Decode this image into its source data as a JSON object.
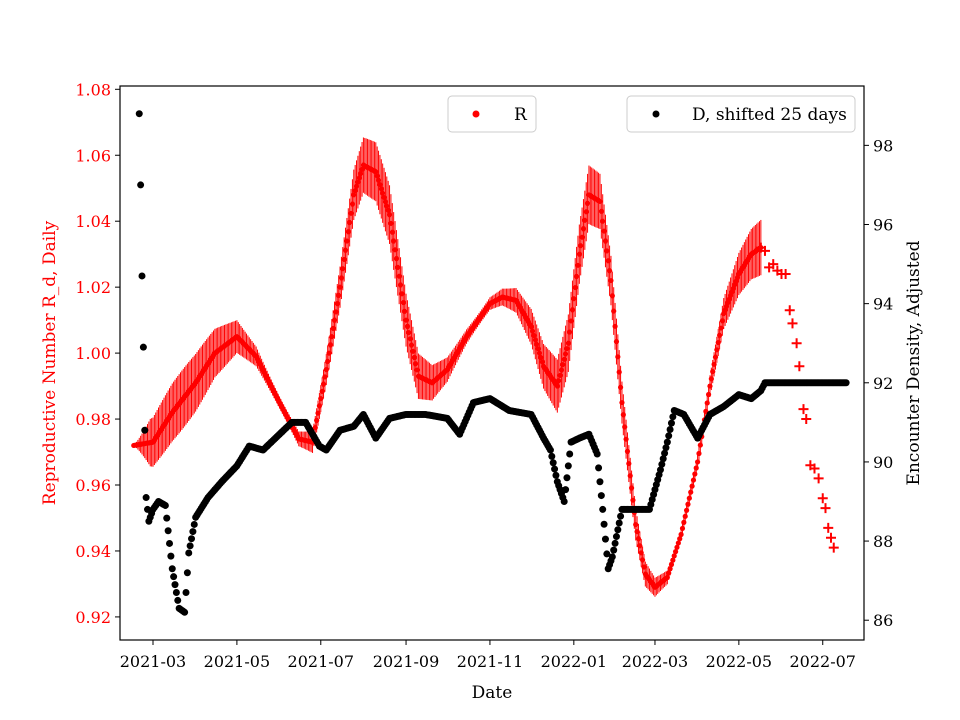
{
  "chart_data": {
    "type": "scatter",
    "xlabel": "Date",
    "ylabel_left": "Reproductive Number R_d, Daily",
    "ylabel_right": "Encounter Density, Adjusted",
    "x_ticks": [
      "2021-03",
      "2021-05",
      "2021-07",
      "2021-09",
      "2021-11",
      "2022-01",
      "2022-03",
      "2022-05",
      "2022-07"
    ],
    "x_range": [
      "2021-02-05",
      "2022-07-31"
    ],
    "ylim_left": [
      0.913,
      1.081
    ],
    "ylim_right": [
      85.5,
      99.5
    ],
    "left_ticks": [
      "0.92",
      "0.94",
      "0.96",
      "0.98",
      "1.00",
      "1.02",
      "1.04",
      "1.06",
      "1.08"
    ],
    "right_ticks": [
      "86",
      "88",
      "90",
      "92",
      "94",
      "96",
      "98"
    ],
    "colors": {
      "R": "#ff0000",
      "D": "#000000",
      "left_axis_text": "#ff0000"
    },
    "legend": [
      {
        "label": "R",
        "position": "upper-center",
        "color": "#ff0000"
      },
      {
        "label": "D, shifted 25 days",
        "position": "upper-right",
        "color": "#000000"
      }
    ],
    "series": [
      {
        "name": "R",
        "axis": "left",
        "marker": "dot",
        "oscillation_amplitude": 0.009,
        "points": [
          [
            "2021-02-15",
            0.972
          ],
          [
            "2021-03-01",
            0.973
          ],
          [
            "2021-03-15",
            0.982
          ],
          [
            "2021-04-01",
            0.991
          ],
          [
            "2021-04-15",
            1.0
          ],
          [
            "2021-05-01",
            1.005
          ],
          [
            "2021-05-15",
            0.999
          ],
          [
            "2021-06-01",
            0.985
          ],
          [
            "2021-06-15",
            0.974
          ],
          [
            "2021-06-25",
            0.973
          ],
          [
            "2021-07-05",
            0.995
          ],
          [
            "2021-07-15",
            1.02
          ],
          [
            "2021-07-25",
            1.048
          ],
          [
            "2021-08-01",
            1.057
          ],
          [
            "2021-08-10",
            1.055
          ],
          [
            "2021-08-20",
            1.042
          ],
          [
            "2021-09-01",
            1.01
          ],
          [
            "2021-09-10",
            0.993
          ],
          [
            "2021-09-20",
            0.991
          ],
          [
            "2021-10-01",
            0.995
          ],
          [
            "2021-10-15",
            1.005
          ],
          [
            "2021-11-01",
            1.015
          ],
          [
            "2021-11-10",
            1.017
          ],
          [
            "2021-11-20",
            1.016
          ],
          [
            "2021-12-01",
            1.008
          ],
          [
            "2021-12-10",
            0.996
          ],
          [
            "2021-12-20",
            0.99
          ],
          [
            "2021-12-28",
            1.003
          ],
          [
            "2022-01-05",
            1.03
          ],
          [
            "2022-01-12",
            1.048
          ],
          [
            "2022-01-20",
            1.046
          ],
          [
            "2022-01-28",
            1.022
          ],
          [
            "2022-02-05",
            0.985
          ],
          [
            "2022-02-15",
            0.948
          ],
          [
            "2022-02-22",
            0.933
          ],
          [
            "2022-03-01",
            0.929
          ],
          [
            "2022-03-10",
            0.932
          ],
          [
            "2022-03-20",
            0.945
          ],
          [
            "2022-04-01",
            0.967
          ],
          [
            "2022-04-10",
            0.99
          ],
          [
            "2022-04-20",
            1.012
          ],
          [
            "2022-05-01",
            1.024
          ],
          [
            "2022-05-10",
            1.03
          ],
          [
            "2022-05-17",
            1.032
          ]
        ]
      },
      {
        "name": "R",
        "axis": "left",
        "marker": "plus",
        "points": [
          [
            "2022-05-17",
            1.032
          ],
          [
            "2022-05-20",
            1.031
          ],
          [
            "2022-05-23",
            1.026
          ],
          [
            "2022-05-26",
            1.027
          ],
          [
            "2022-05-29",
            1.025
          ],
          [
            "2022-06-01",
            1.024
          ],
          [
            "2022-06-04",
            1.024
          ],
          [
            "2022-06-07",
            1.013
          ],
          [
            "2022-06-09",
            1.009
          ],
          [
            "2022-06-12",
            1.003
          ],
          [
            "2022-06-14",
            0.996
          ],
          [
            "2022-06-17",
            0.983
          ],
          [
            "2022-06-19",
            0.98
          ],
          [
            "2022-06-22",
            0.966
          ],
          [
            "2022-06-25",
            0.965
          ],
          [
            "2022-06-28",
            0.962
          ],
          [
            "2022-07-01",
            0.956
          ],
          [
            "2022-07-03",
            0.953
          ],
          [
            "2022-07-05",
            0.947
          ],
          [
            "2022-07-07",
            0.944
          ],
          [
            "2022-07-09",
            0.941
          ]
        ]
      },
      {
        "name": "D, shifted 25 days",
        "axis": "right",
        "marker": "dot",
        "points": [
          [
            "2021-02-19",
            98.8
          ],
          [
            "2021-02-20",
            97.0
          ],
          [
            "2021-02-21",
            94.7
          ],
          [
            "2021-02-22",
            92.9
          ],
          [
            "2021-02-23",
            90.8
          ],
          [
            "2021-02-24",
            89.1
          ],
          [
            "2021-02-26",
            88.5
          ],
          [
            "2021-03-01",
            88.8
          ],
          [
            "2021-03-05",
            89.0
          ],
          [
            "2021-03-10",
            88.9
          ],
          [
            "2021-03-15",
            87.3
          ],
          [
            "2021-03-20",
            86.3
          ],
          [
            "2021-03-24",
            86.2
          ],
          [
            "2021-03-27",
            87.7
          ],
          [
            "2021-04-01",
            88.6
          ],
          [
            "2021-04-10",
            89.1
          ],
          [
            "2021-04-20",
            89.5
          ],
          [
            "2021-05-01",
            89.9
          ],
          [
            "2021-05-10",
            90.4
          ],
          [
            "2021-05-20",
            90.3
          ],
          [
            "2021-06-01",
            90.7
          ],
          [
            "2021-06-10",
            91.0
          ],
          [
            "2021-06-20",
            91.0
          ],
          [
            "2021-06-30",
            90.4
          ],
          [
            "2021-07-05",
            90.3
          ],
          [
            "2021-07-15",
            90.8
          ],
          [
            "2021-07-25",
            90.9
          ],
          [
            "2021-08-01",
            91.2
          ],
          [
            "2021-08-10",
            90.6
          ],
          [
            "2021-08-20",
            91.1
          ],
          [
            "2021-09-01",
            91.2
          ],
          [
            "2021-09-15",
            91.2
          ],
          [
            "2021-10-01",
            91.1
          ],
          [
            "2021-10-10",
            90.7
          ],
          [
            "2021-10-20",
            91.5
          ],
          [
            "2021-11-01",
            91.6
          ],
          [
            "2021-11-15",
            91.3
          ],
          [
            "2021-12-01",
            91.2
          ],
          [
            "2021-12-10",
            90.6
          ],
          [
            "2021-12-15",
            90.3
          ],
          [
            "2021-12-20",
            89.5
          ],
          [
            "2021-12-25",
            89.0
          ],
          [
            "2021-12-30",
            90.5
          ],
          [
            "2022-01-05",
            90.6
          ],
          [
            "2022-01-12",
            90.7
          ],
          [
            "2022-01-18",
            90.2
          ],
          [
            "2022-01-22",
            88.8
          ],
          [
            "2022-01-26",
            87.3
          ],
          [
            "2022-01-29",
            87.6
          ],
          [
            "2022-02-05",
            88.8
          ],
          [
            "2022-02-15",
            88.8
          ],
          [
            "2022-02-25",
            88.8
          ],
          [
            "2022-03-01",
            89.3
          ],
          [
            "2022-03-05",
            89.8
          ],
          [
            "2022-03-10",
            90.5
          ],
          [
            "2022-03-15",
            91.3
          ],
          [
            "2022-03-22",
            91.2
          ],
          [
            "2022-04-01",
            90.6
          ],
          [
            "2022-04-10",
            91.2
          ],
          [
            "2022-04-20",
            91.4
          ],
          [
            "2022-05-01",
            91.7
          ],
          [
            "2022-05-10",
            91.6
          ],
          [
            "2022-05-17",
            91.8
          ],
          [
            "2022-05-20",
            92.0
          ],
          [
            "2022-06-10",
            92.0
          ],
          [
            "2022-07-01",
            92.0
          ],
          [
            "2022-07-18",
            92.0
          ]
        ]
      }
    ]
  }
}
